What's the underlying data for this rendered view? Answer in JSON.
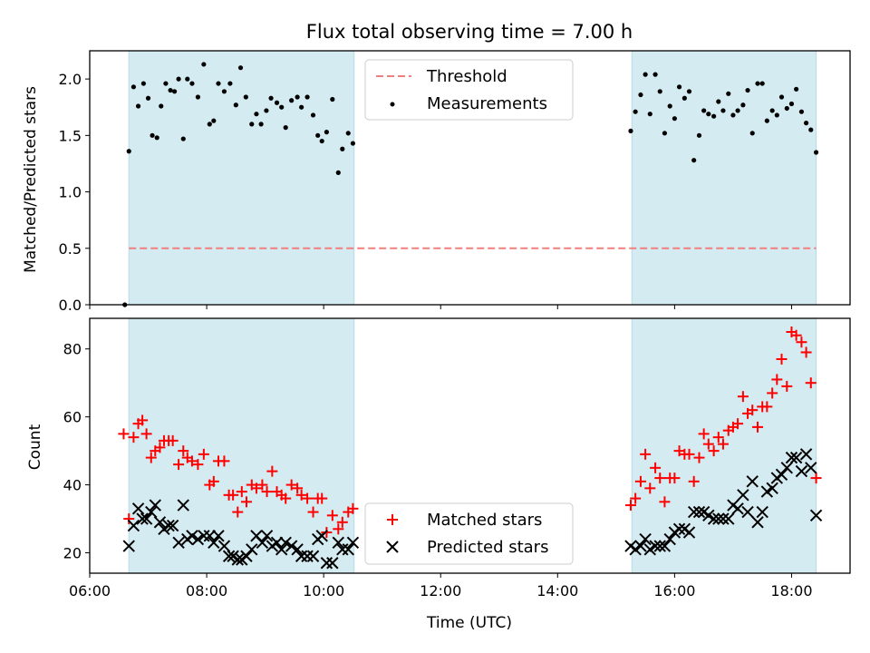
{
  "figure": {
    "title": "Flux total observing time = 7.00 h",
    "xlabel": "Time (UTC)",
    "xticks": [
      "06:00",
      "08:00",
      "10:00",
      "12:00",
      "14:00",
      "16:00",
      "18:00"
    ]
  },
  "chart_data": [
    {
      "type": "scatter",
      "ylabel": "Matched/Predicted stars",
      "x_unit": "hours UTC",
      "xlim": [
        6.0,
        19.0
      ],
      "ylim": [
        0.0,
        2.25
      ],
      "yticks": [
        "0.0",
        "0.5",
        "1.0",
        "1.5",
        "2.0"
      ],
      "observing_windows": [
        [
          6.67,
          10.52
        ],
        [
          15.27,
          18.42
        ]
      ],
      "window_color": "#d4ebf1",
      "legend": {
        "position": "top-center",
        "entries": [
          "Threshold",
          "Measurements"
        ]
      },
      "threshold": {
        "name": "Threshold",
        "value": 0.5,
        "x_range": [
          6.67,
          18.42
        ],
        "color": "#f07f7f",
        "style": "dashed"
      },
      "series": [
        {
          "name": "Measurements",
          "color": "#000000",
          "marker": "dot",
          "points": [
            [
              6.6,
              0.0
            ],
            [
              6.67,
              1.36
            ],
            [
              6.75,
              1.93
            ],
            [
              6.83,
              1.76
            ],
            [
              6.92,
              1.96
            ],
            [
              7.0,
              1.83
            ],
            [
              7.07,
              1.5
            ],
            [
              7.15,
              1.48
            ],
            [
              7.22,
              1.76
            ],
            [
              7.3,
              1.96
            ],
            [
              7.38,
              1.9
            ],
            [
              7.45,
              1.89
            ],
            [
              7.52,
              2.0
            ],
            [
              7.6,
              1.47
            ],
            [
              7.67,
              2.0
            ],
            [
              7.75,
              1.96
            ],
            [
              7.85,
              1.84
            ],
            [
              7.95,
              2.13
            ],
            [
              8.05,
              1.6
            ],
            [
              8.12,
              1.63
            ],
            [
              8.2,
              1.96
            ],
            [
              8.3,
              1.89
            ],
            [
              8.4,
              1.96
            ],
            [
              8.5,
              1.77
            ],
            [
              8.58,
              2.1
            ],
            [
              8.67,
              1.84
            ],
            [
              8.77,
              1.6
            ],
            [
              8.85,
              1.69
            ],
            [
              8.93,
              1.6
            ],
            [
              9.02,
              1.72
            ],
            [
              9.1,
              1.83
            ],
            [
              9.2,
              1.79
            ],
            [
              9.28,
              1.75
            ],
            [
              9.35,
              1.57
            ],
            [
              9.45,
              1.81
            ],
            [
              9.55,
              1.84
            ],
            [
              9.62,
              1.75
            ],
            [
              9.72,
              1.84
            ],
            [
              9.82,
              1.68
            ],
            [
              9.9,
              1.5
            ],
            [
              9.97,
              1.45
            ],
            [
              10.05,
              1.53
            ],
            [
              10.15,
              1.82
            ],
            [
              10.25,
              1.17
            ],
            [
              10.32,
              1.38
            ],
            [
              10.42,
              1.52
            ],
            [
              10.5,
              1.43
            ],
            [
              15.25,
              1.54
            ],
            [
              15.33,
              1.71
            ],
            [
              15.42,
              1.86
            ],
            [
              15.5,
              2.04
            ],
            [
              15.58,
              1.69
            ],
            [
              15.67,
              2.04
            ],
            [
              15.75,
              1.89
            ],
            [
              15.83,
              1.52
            ],
            [
              15.92,
              1.76
            ],
            [
              16.0,
              1.65
            ],
            [
              16.08,
              1.93
            ],
            [
              16.17,
              1.83
            ],
            [
              16.25,
              1.89
            ],
            [
              16.33,
              1.28
            ],
            [
              16.42,
              1.5
            ],
            [
              16.5,
              1.72
            ],
            [
              16.58,
              1.69
            ],
            [
              16.67,
              1.67
            ],
            [
              16.75,
              1.8
            ],
            [
              16.83,
              1.72
            ],
            [
              16.92,
              1.87
            ],
            [
              17.0,
              1.68
            ],
            [
              17.08,
              1.72
            ],
            [
              17.17,
              1.77
            ],
            [
              17.25,
              1.9
            ],
            [
              17.33,
              1.52
            ],
            [
              17.42,
              1.96
            ],
            [
              17.5,
              1.96
            ],
            [
              17.58,
              1.63
            ],
            [
              17.67,
              1.72
            ],
            [
              17.75,
              1.68
            ],
            [
              17.83,
              1.84
            ],
            [
              17.92,
              1.74
            ],
            [
              18.0,
              1.78
            ],
            [
              18.08,
              1.91
            ],
            [
              18.17,
              1.71
            ],
            [
              18.25,
              1.61
            ],
            [
              18.33,
              1.55
            ],
            [
              18.42,
              1.35
            ]
          ]
        }
      ]
    },
    {
      "type": "scatter",
      "ylabel": "Count",
      "x_unit": "hours UTC",
      "xlim": [
        6.0,
        19.0
      ],
      "ylim": [
        14,
        89
      ],
      "yticks": [
        "20",
        "40",
        "60",
        "80"
      ],
      "observing_windows": [
        [
          6.67,
          10.52
        ],
        [
          15.27,
          18.42
        ]
      ],
      "window_color": "#d4ebf1",
      "legend": {
        "position": "bottom-center",
        "entries": [
          "Matched stars",
          "Predicted stars"
        ]
      },
      "series": [
        {
          "name": "Matched stars",
          "color": "#ff0000",
          "marker": "plus",
          "points": [
            [
              6.58,
              55
            ],
            [
              6.67,
              30
            ],
            [
              6.75,
              54
            ],
            [
              6.83,
              58
            ],
            [
              6.9,
              59
            ],
            [
              6.97,
              55
            ],
            [
              7.05,
              48
            ],
            [
              7.12,
              50
            ],
            [
              7.2,
              51
            ],
            [
              7.27,
              53
            ],
            [
              7.35,
              53
            ],
            [
              7.42,
              53
            ],
            [
              7.52,
              46
            ],
            [
              7.6,
              50
            ],
            [
              7.67,
              48
            ],
            [
              7.75,
              47
            ],
            [
              7.85,
              46
            ],
            [
              7.95,
              49
            ],
            [
              8.05,
              40
            ],
            [
              8.12,
              41
            ],
            [
              8.2,
              47
            ],
            [
              8.3,
              47
            ],
            [
              8.38,
              37
            ],
            [
              8.45,
              37
            ],
            [
              8.53,
              32
            ],
            [
              8.6,
              38
            ],
            [
              8.68,
              35
            ],
            [
              8.77,
              40
            ],
            [
              8.85,
              39
            ],
            [
              8.95,
              40
            ],
            [
              9.03,
              38
            ],
            [
              9.12,
              44
            ],
            [
              9.2,
              38
            ],
            [
              9.28,
              37
            ],
            [
              9.35,
              36
            ],
            [
              9.45,
              40
            ],
            [
              9.55,
              39
            ],
            [
              9.62,
              37
            ],
            [
              9.72,
              36
            ],
            [
              9.82,
              32
            ],
            [
              9.9,
              36
            ],
            [
              9.97,
              36
            ],
            [
              10.05,
              26
            ],
            [
              10.15,
              31
            ],
            [
              10.25,
              27
            ],
            [
              10.32,
              29
            ],
            [
              10.42,
              32
            ],
            [
              10.5,
              33
            ],
            [
              15.25,
              34
            ],
            [
              15.33,
              36
            ],
            [
              15.42,
              41
            ],
            [
              15.5,
              49
            ],
            [
              15.58,
              39
            ],
            [
              15.67,
              45
            ],
            [
              15.75,
              42
            ],
            [
              15.83,
              35
            ],
            [
              15.92,
              42
            ],
            [
              16.0,
              42
            ],
            [
              16.08,
              50
            ],
            [
              16.17,
              49
            ],
            [
              16.25,
              49
            ],
            [
              16.33,
              41
            ],
            [
              16.42,
              48
            ],
            [
              16.5,
              55
            ],
            [
              16.58,
              52
            ],
            [
              16.67,
              50
            ],
            [
              16.75,
              54
            ],
            [
              16.83,
              52
            ],
            [
              16.92,
              56
            ],
            [
              17.0,
              57
            ],
            [
              17.08,
              58
            ],
            [
              17.17,
              66
            ],
            [
              17.25,
              61
            ],
            [
              17.33,
              62
            ],
            [
              17.42,
              57
            ],
            [
              17.5,
              63
            ],
            [
              17.58,
              63
            ],
            [
              17.67,
              67
            ],
            [
              17.75,
              71
            ],
            [
              17.83,
              77
            ],
            [
              17.92,
              69
            ],
            [
              18.0,
              85
            ],
            [
              18.08,
              84
            ],
            [
              18.17,
              82
            ],
            [
              18.25,
              79
            ],
            [
              18.33,
              70
            ],
            [
              18.42,
              42
            ]
          ]
        },
        {
          "name": "Predicted stars",
          "color": "#000000",
          "marker": "x",
          "points": [
            [
              6.67,
              22
            ],
            [
              6.75,
              28
            ],
            [
              6.83,
              33
            ],
            [
              6.9,
              30
            ],
            [
              6.97,
              30
            ],
            [
              7.05,
              32
            ],
            [
              7.12,
              34
            ],
            [
              7.2,
              29
            ],
            [
              7.27,
              27
            ],
            [
              7.35,
              28
            ],
            [
              7.42,
              28
            ],
            [
              7.52,
              23
            ],
            [
              7.6,
              34
            ],
            [
              7.67,
              24
            ],
            [
              7.75,
              25
            ],
            [
              7.85,
              24
            ],
            [
              7.95,
              25
            ],
            [
              8.05,
              25
            ],
            [
              8.12,
              23
            ],
            [
              8.2,
              25
            ],
            [
              8.3,
              22
            ],
            [
              8.38,
              19
            ],
            [
              8.45,
              19
            ],
            [
              8.53,
              18
            ],
            [
              8.6,
              18
            ],
            [
              8.68,
              19
            ],
            [
              8.77,
              21
            ],
            [
              8.85,
              25
            ],
            [
              8.95,
              23
            ],
            [
              9.03,
              25
            ],
            [
              9.12,
              22
            ],
            [
              9.2,
              23
            ],
            [
              9.28,
              21
            ],
            [
              9.35,
              23
            ],
            [
              9.45,
              22
            ],
            [
              9.55,
              21
            ],
            [
              9.62,
              19
            ],
            [
              9.72,
              19
            ],
            [
              9.82,
              19
            ],
            [
              9.9,
              24
            ],
            [
              9.97,
              25
            ],
            [
              10.05,
              17
            ],
            [
              10.15,
              17
            ],
            [
              10.25,
              23
            ],
            [
              10.32,
              21
            ],
            [
              10.42,
              21
            ],
            [
              10.5,
              23
            ],
            [
              15.25,
              22
            ],
            [
              15.33,
              21
            ],
            [
              15.42,
              22
            ],
            [
              15.5,
              24
            ],
            [
              15.58,
              21
            ],
            [
              15.67,
              22
            ],
            [
              15.75,
              22
            ],
            [
              15.83,
              22
            ],
            [
              15.92,
              24
            ],
            [
              16.0,
              26
            ],
            [
              16.08,
              27
            ],
            [
              16.17,
              27
            ],
            [
              16.25,
              26
            ],
            [
              16.33,
              32
            ],
            [
              16.42,
              32
            ],
            [
              16.5,
              32
            ],
            [
              16.58,
              31
            ],
            [
              16.67,
              30
            ],
            [
              16.75,
              30
            ],
            [
              16.83,
              30
            ],
            [
              16.92,
              30
            ],
            [
              17.0,
              34
            ],
            [
              17.08,
              33
            ],
            [
              17.17,
              37
            ],
            [
              17.25,
              32
            ],
            [
              17.33,
              41
            ],
            [
              17.42,
              29
            ],
            [
              17.5,
              32
            ],
            [
              17.58,
              38
            ],
            [
              17.67,
              39
            ],
            [
              17.75,
              42
            ],
            [
              17.83,
              43
            ],
            [
              17.92,
              45
            ],
            [
              18.0,
              48
            ],
            [
              18.08,
              48
            ],
            [
              18.17,
              44
            ],
            [
              18.25,
              49
            ],
            [
              18.33,
              45
            ],
            [
              18.42,
              31
            ]
          ]
        }
      ]
    }
  ]
}
